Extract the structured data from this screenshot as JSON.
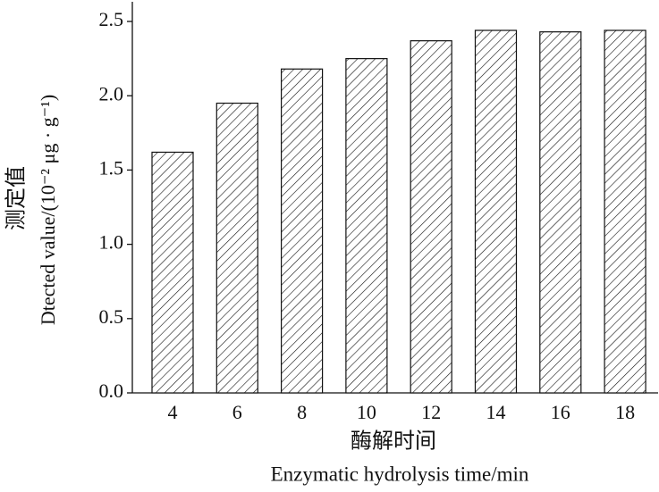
{
  "chart_data": {
    "type": "bar",
    "categories": [
      "4",
      "6",
      "8",
      "10",
      "12",
      "14",
      "16",
      "18"
    ],
    "values": [
      1.62,
      1.95,
      2.18,
      2.25,
      2.37,
      2.44,
      2.43,
      2.44
    ],
    "ylim": [
      0,
      2.6
    ],
    "yticks": [
      {
        "value": 0,
        "label": "0.0"
      },
      0.5,
      {
        "value": 1,
        "label": "1.0"
      },
      1.5,
      {
        "value": 2,
        "label": "2.0"
      },
      2.5
    ],
    "x_label_cn": "酶解时间",
    "x_label": "Enzymatic hydrolysis time/min",
    "y_label_cn": "测定值",
    "y_label": "Dtected value/(10⁻² μg · g⁻¹)",
    "color": "#111111",
    "hatch": true,
    "grid": false
  }
}
